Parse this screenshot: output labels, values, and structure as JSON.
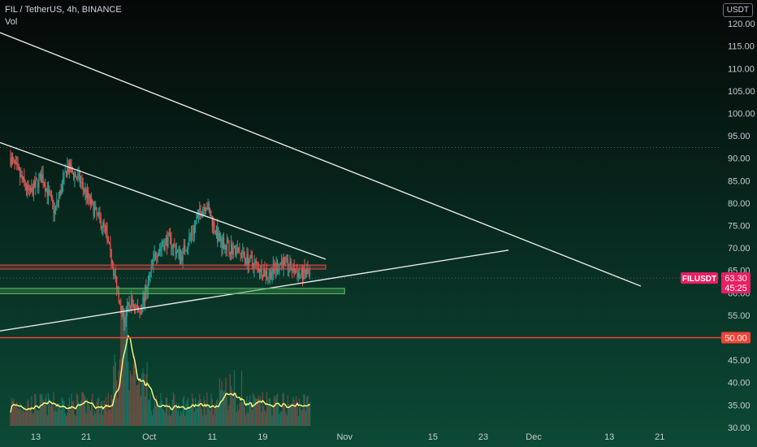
{
  "header": {
    "symbol": "FIL",
    "quote": "TetherUS",
    "interval": "4h",
    "exchange": "BINANCE",
    "title": "FIL / TetherUS, 4h, BINANCE",
    "indicator": "Vol"
  },
  "currency_button": "USDT",
  "colors": {
    "up": "#26a69a",
    "down": "#ef5350",
    "trendline": "#e8e8e8",
    "resistance_zone": "#b23a3a",
    "support_zone": "#3a8f4a",
    "level_line": "#f44336",
    "price_badge": "#e91e63",
    "volume_ma": "#ffff80"
  },
  "price_badge": {
    "symbol": "FILUSDT",
    "price": "63.30",
    "countdown": "45:25"
  },
  "level_badge": "50.00",
  "chart_data": {
    "type": "candlestick",
    "y_axis": {
      "range": [
        26,
        124
      ],
      "ticks": [
        "120.00",
        "115.00",
        "110.00",
        "105.00",
        "100.00",
        "95.00",
        "90.00",
        "85.00",
        "80.00",
        "75.00",
        "70.00",
        "65.00",
        "60.00",
        "55.00",
        "50.00",
        "45.00",
        "40.00",
        "35.00",
        "30.00"
      ]
    },
    "x_axis": {
      "labels": [
        {
          "text": "13",
          "day": 13
        },
        {
          "text": "21",
          "day": 21
        },
        {
          "text": "Oct",
          "day": 31
        },
        {
          "text": "11",
          "day": 41
        },
        {
          "text": "19",
          "day": 49
        },
        {
          "text": "Nov",
          "day": 62
        },
        {
          "text": "15",
          "day": 76
        },
        {
          "text": "23",
          "day": 84
        },
        {
          "text": "Dec",
          "day": 92
        },
        {
          "text": "13",
          "day": 104
        },
        {
          "text": "21",
          "day": 112
        }
      ]
    },
    "price_path": [
      [
        9,
        90
      ],
      [
        12,
        82
      ],
      [
        14,
        86
      ],
      [
        16,
        78
      ],
      [
        18,
        88
      ],
      [
        20,
        85
      ],
      [
        22,
        79
      ],
      [
        24,
        74
      ],
      [
        25.5,
        64
      ],
      [
        27,
        54
      ],
      [
        28,
        58
      ],
      [
        29.5,
        56
      ],
      [
        31,
        63
      ],
      [
        32,
        69
      ],
      [
        34,
        72
      ],
      [
        36,
        68
      ],
      [
        38,
        74
      ],
      [
        39,
        78
      ],
      [
        40,
        80
      ],
      [
        41,
        76
      ],
      [
        42,
        72
      ],
      [
        44,
        70
      ],
      [
        46,
        68
      ],
      [
        48,
        66
      ],
      [
        50,
        64
      ],
      [
        52,
        67
      ],
      [
        54,
        65
      ],
      [
        55,
        64
      ],
      [
        56,
        64.5
      ],
      [
        56.5,
        63.3
      ]
    ],
    "series": [
      {
        "kind": "trendline",
        "points": [
          [
            9,
            118
          ],
          [
            109,
            61.5
          ]
        ]
      },
      {
        "kind": "trendline",
        "points": [
          [
            9,
            93.5
          ],
          [
            59,
            67.5
          ]
        ]
      },
      {
        "kind": "trendline",
        "points": [
          [
            9,
            51.5
          ],
          [
            88,
            69.5
          ]
        ]
      },
      {
        "kind": "zone",
        "label": "resistance",
        "x": [
          9,
          59
        ],
        "y": [
          65.3,
          66.2
        ]
      },
      {
        "kind": "zone",
        "label": "support",
        "x": [
          9,
          62
        ],
        "y": [
          59.8,
          61.0
        ]
      },
      {
        "kind": "hline",
        "y": 50.0
      },
      {
        "kind": "hline",
        "y": 92.4,
        "style": "dotted"
      },
      {
        "kind": "hline",
        "y": 63.3,
        "style": "dotted"
      }
    ],
    "legend": "none",
    "grid": false
  }
}
